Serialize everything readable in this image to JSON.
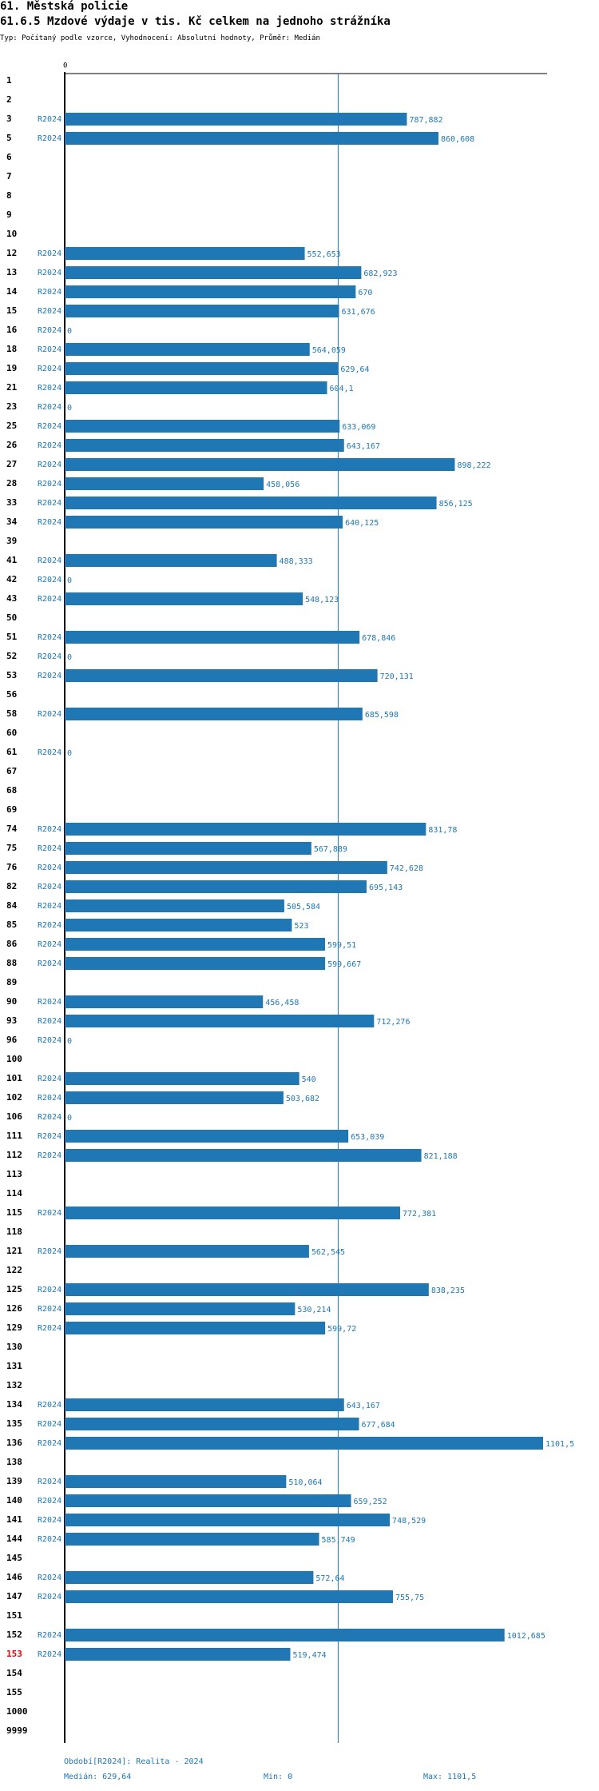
{
  "header": {
    "title": "61. Městská policie",
    "subtitle": "61.6.5 Mzdové výdaje v tis. Kč celkem na jednoho strážníka",
    "meta": "Typ: Počítaný podle vzorce, Vyhodnocení: Absolutní hodnoty, Průměr: Medián"
  },
  "chart_data": {
    "type": "bar",
    "orientation": "horizontal",
    "series_label": "R2024",
    "axis_zero_label": "0",
    "xlim": [
      0,
      1101.5
    ],
    "median": 629.64,
    "highlight_category": "153",
    "rows": [
      {
        "category": "1",
        "value": null,
        "label": ""
      },
      {
        "category": "2",
        "value": null,
        "label": ""
      },
      {
        "category": "3",
        "value": 787.882,
        "label": "787,882"
      },
      {
        "category": "5",
        "value": 860.608,
        "label": "860,608"
      },
      {
        "category": "6",
        "value": null,
        "label": ""
      },
      {
        "category": "7",
        "value": null,
        "label": ""
      },
      {
        "category": "8",
        "value": null,
        "label": ""
      },
      {
        "category": "9",
        "value": null,
        "label": ""
      },
      {
        "category": "10",
        "value": null,
        "label": ""
      },
      {
        "category": "12",
        "value": 552.653,
        "label": "552,653"
      },
      {
        "category": "13",
        "value": 682.923,
        "label": "682,923"
      },
      {
        "category": "14",
        "value": 670,
        "label": "670"
      },
      {
        "category": "15",
        "value": 631.676,
        "label": "631,676"
      },
      {
        "category": "16",
        "value": 0,
        "label": "0"
      },
      {
        "category": "18",
        "value": 564.059,
        "label": "564,059"
      },
      {
        "category": "19",
        "value": 629.64,
        "label": "629,64"
      },
      {
        "category": "21",
        "value": 604.1,
        "label": "604,1"
      },
      {
        "category": "23",
        "value": 0,
        "label": "0"
      },
      {
        "category": "25",
        "value": 633.069,
        "label": "633,069"
      },
      {
        "category": "26",
        "value": 643.167,
        "label": "643,167"
      },
      {
        "category": "27",
        "value": 898.222,
        "label": "898,222"
      },
      {
        "category": "28",
        "value": 458.056,
        "label": "458,056"
      },
      {
        "category": "33",
        "value": 856.125,
        "label": "856,125"
      },
      {
        "category": "34",
        "value": 640.125,
        "label": "640,125"
      },
      {
        "category": "39",
        "value": null,
        "label": ""
      },
      {
        "category": "41",
        "value": 488.333,
        "label": "488,333"
      },
      {
        "category": "42",
        "value": 0,
        "label": "0"
      },
      {
        "category": "43",
        "value": 548.123,
        "label": "548,123"
      },
      {
        "category": "50",
        "value": null,
        "label": ""
      },
      {
        "category": "51",
        "value": 678.846,
        "label": "678,846"
      },
      {
        "category": "52",
        "value": 0,
        "label": "0"
      },
      {
        "category": "53",
        "value": 720.131,
        "label": "720,131"
      },
      {
        "category": "56",
        "value": null,
        "label": ""
      },
      {
        "category": "58",
        "value": 685.598,
        "label": "685,598"
      },
      {
        "category": "60",
        "value": null,
        "label": ""
      },
      {
        "category": "61",
        "value": 0,
        "label": "0"
      },
      {
        "category": "67",
        "value": null,
        "label": ""
      },
      {
        "category": "68",
        "value": null,
        "label": ""
      },
      {
        "category": "69",
        "value": null,
        "label": ""
      },
      {
        "category": "74",
        "value": 831.78,
        "label": "831,78"
      },
      {
        "category": "75",
        "value": 567.889,
        "label": "567,889"
      },
      {
        "category": "76",
        "value": 742.628,
        "label": "742,628"
      },
      {
        "category": "82",
        "value": 695.143,
        "label": "695,143"
      },
      {
        "category": "84",
        "value": 505.584,
        "label": "505,584"
      },
      {
        "category": "85",
        "value": 523,
        "label": "523"
      },
      {
        "category": "86",
        "value": 599.51,
        "label": "599,51"
      },
      {
        "category": "88",
        "value": 599.667,
        "label": "599,667"
      },
      {
        "category": "89",
        "value": null,
        "label": ""
      },
      {
        "category": "90",
        "value": 456.458,
        "label": "456,458"
      },
      {
        "category": "93",
        "value": 712.276,
        "label": "712,276"
      },
      {
        "category": "96",
        "value": 0,
        "label": "0"
      },
      {
        "category": "100",
        "value": null,
        "label": ""
      },
      {
        "category": "101",
        "value": 540,
        "label": "540"
      },
      {
        "category": "102",
        "value": 503.682,
        "label": "503,682"
      },
      {
        "category": "106",
        "value": 0,
        "label": "0"
      },
      {
        "category": "111",
        "value": 653.039,
        "label": "653,039"
      },
      {
        "category": "112",
        "value": 821.188,
        "label": "821,188"
      },
      {
        "category": "113",
        "value": null,
        "label": ""
      },
      {
        "category": "114",
        "value": null,
        "label": ""
      },
      {
        "category": "115",
        "value": 772.381,
        "label": "772,381"
      },
      {
        "category": "118",
        "value": null,
        "label": ""
      },
      {
        "category": "121",
        "value": 562.545,
        "label": "562,545"
      },
      {
        "category": "122",
        "value": null,
        "label": ""
      },
      {
        "category": "125",
        "value": 838.235,
        "label": "838,235"
      },
      {
        "category": "126",
        "value": 530.214,
        "label": "530,214"
      },
      {
        "category": "129",
        "value": 599.72,
        "label": "599,72"
      },
      {
        "category": "130",
        "value": null,
        "label": ""
      },
      {
        "category": "131",
        "value": null,
        "label": ""
      },
      {
        "category": "132",
        "value": null,
        "label": ""
      },
      {
        "category": "134",
        "value": 643.167,
        "label": "643,167"
      },
      {
        "category": "135",
        "value": 677.684,
        "label": "677,684"
      },
      {
        "category": "136",
        "value": 1101.5,
        "label": "1101,5"
      },
      {
        "category": "138",
        "value": null,
        "label": ""
      },
      {
        "category": "139",
        "value": 510.064,
        "label": "510,064"
      },
      {
        "category": "140",
        "value": 659.252,
        "label": "659,252"
      },
      {
        "category": "141",
        "value": 748.529,
        "label": "748,529"
      },
      {
        "category": "144",
        "value": 585.749,
        "label": "585,749"
      },
      {
        "category": "145",
        "value": null,
        "label": ""
      },
      {
        "category": "146",
        "value": 572.64,
        "label": "572,64"
      },
      {
        "category": "147",
        "value": 755.75,
        "label": "755,75"
      },
      {
        "category": "151",
        "value": null,
        "label": ""
      },
      {
        "category": "152",
        "value": 1012.685,
        "label": "1012,685"
      },
      {
        "category": "153",
        "value": 519.474,
        "label": "519,474"
      },
      {
        "category": "154",
        "value": null,
        "label": ""
      },
      {
        "category": "155",
        "value": null,
        "label": ""
      },
      {
        "category": "1000",
        "value": null,
        "label": ""
      },
      {
        "category": "9999",
        "value": null,
        "label": ""
      }
    ]
  },
  "footer": {
    "period": "Období[R2024]: Realita - 2024",
    "median_label": "Medián: 629,64",
    "min_label": "Min: 0",
    "max_label": "Max: 1101,5"
  },
  "colors": {
    "bar": "#1f77b4",
    "text_blue": "#1f77b4",
    "highlight": "#e8000b",
    "axis": "#000000",
    "median_line": "#1f77b4"
  }
}
